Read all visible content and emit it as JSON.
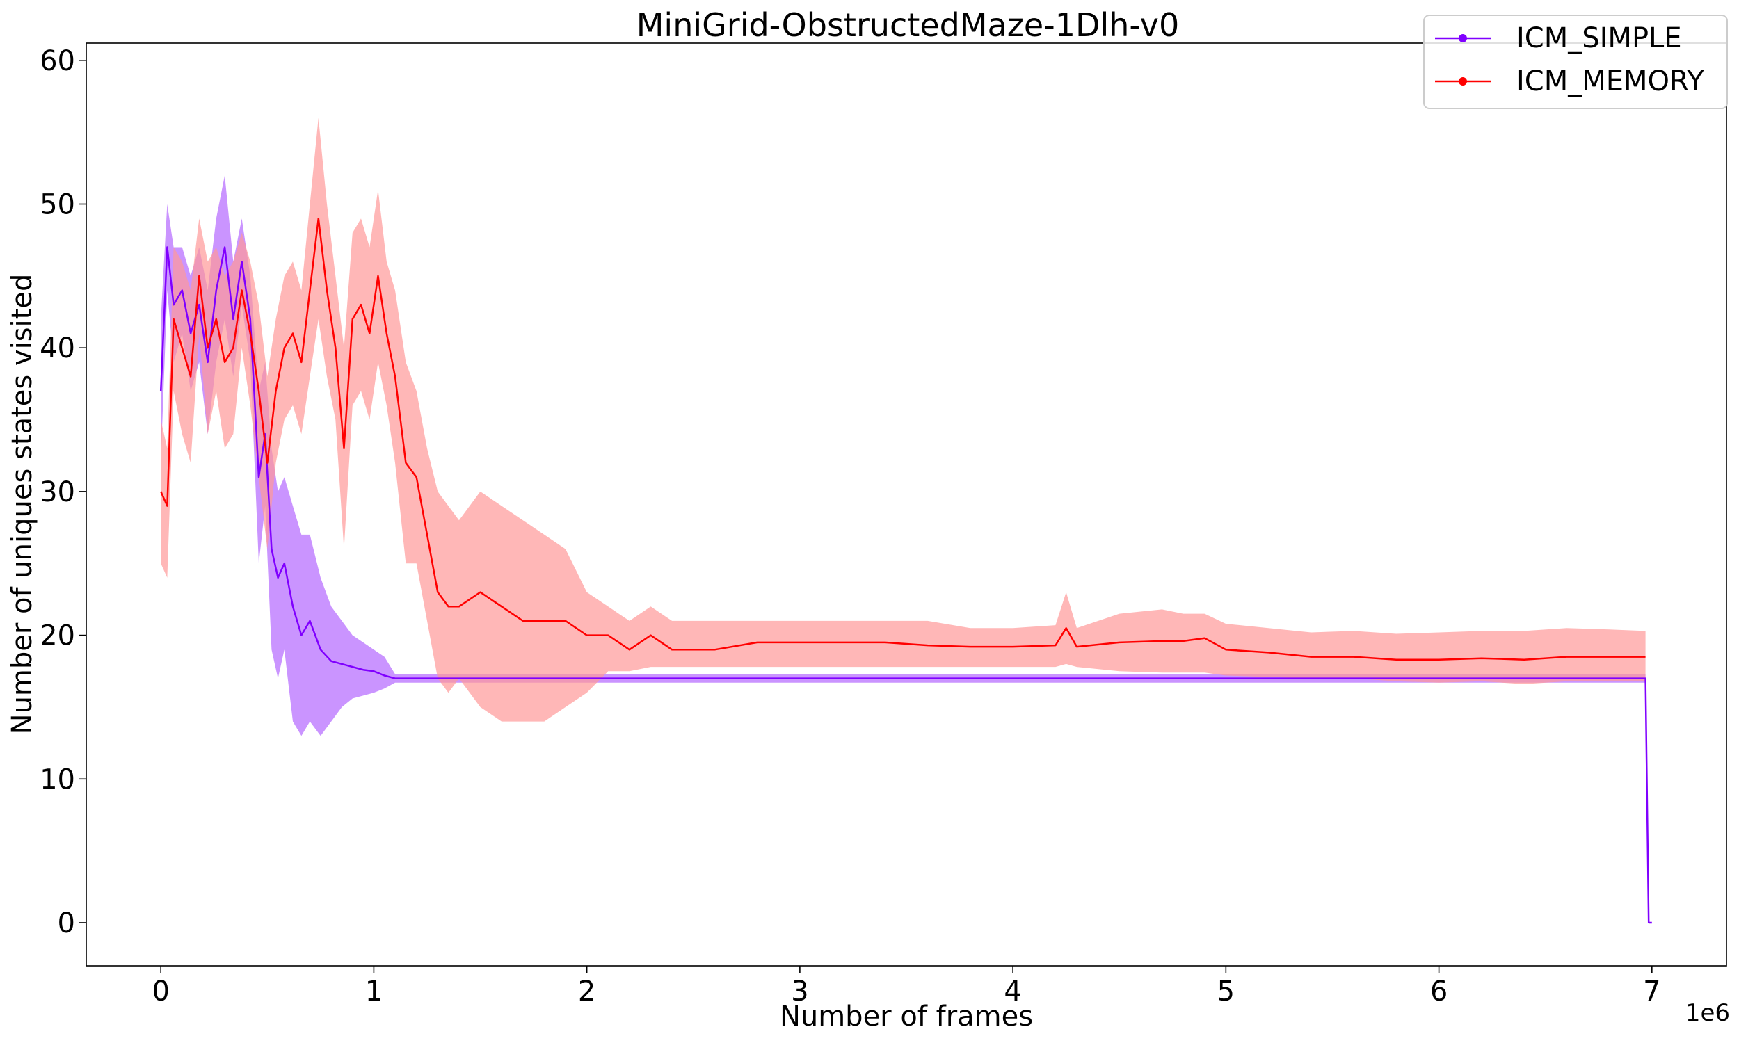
{
  "chart_data": {
    "type": "line",
    "title": "MiniGrid-ObstructedMaze-1Dlh-v0",
    "xlabel": "Number of frames",
    "ylabel": "Number of uniques states visited",
    "x_offset_text": "1e6",
    "xlim": [
      -0.35,
      7.35
    ],
    "ylim": [
      -3,
      61.2
    ],
    "x_scale_factor": 1000000,
    "x_ticks": [
      0,
      1,
      2,
      3,
      4,
      5,
      6,
      7
    ],
    "x_tick_labels": [
      "0",
      "1",
      "2",
      "3",
      "4",
      "5",
      "6",
      "7"
    ],
    "y_ticks": [
      0,
      10,
      20,
      30,
      40,
      50,
      60
    ],
    "y_tick_labels": [
      "0",
      "10",
      "20",
      "30",
      "40",
      "50",
      "60"
    ],
    "grid": false,
    "legend_position": "top-right",
    "series": [
      {
        "name": "ICM_SIMPLE",
        "color": "#8000ff",
        "band_color": "#b366ff",
        "x": [
          0,
          0.03,
          0.06,
          0.1,
          0.14,
          0.18,
          0.22,
          0.26,
          0.3,
          0.34,
          0.38,
          0.42,
          0.46,
          0.49,
          0.52,
          0.55,
          0.58,
          0.62,
          0.66,
          0.7,
          0.75,
          0.8,
          0.85,
          0.9,
          0.95,
          1.0,
          1.05,
          1.1,
          1.5,
          2.0,
          3.0,
          4.0,
          5.0,
          6.0,
          6.97,
          6.985,
          7.0
        ],
        "mean": [
          37,
          47,
          43,
          44,
          41,
          43,
          39,
          44,
          47,
          42,
          46,
          42,
          31,
          34,
          26,
          24,
          25,
          22,
          20,
          21,
          19,
          18.2,
          18,
          17.8,
          17.6,
          17.5,
          17.2,
          17,
          17,
          17,
          17,
          17,
          17,
          17,
          17,
          0,
          0
        ],
        "upper": [
          42,
          50,
          47,
          47,
          45,
          47,
          44,
          49,
          52,
          46,
          49,
          45,
          37,
          39,
          33,
          30,
          31,
          29,
          27,
          27,
          24,
          22,
          21,
          20,
          19.5,
          19,
          18.5,
          17.3,
          17.3,
          17.3,
          17.3,
          17.3,
          17.3,
          17.3,
          17.3,
          0,
          0
        ],
        "lower": [
          32,
          44,
          39,
          41,
          37,
          39,
          34,
          39,
          42,
          38,
          43,
          39,
          25,
          29,
          19,
          17,
          19,
          14,
          13,
          14,
          13,
          14,
          15,
          15.6,
          15.8,
          16,
          16.3,
          16.7,
          16.7,
          16.7,
          16.7,
          16.7,
          16.7,
          16.7,
          16.7,
          0,
          0
        ]
      },
      {
        "name": "ICM_MEMORY",
        "color": "#ff0000",
        "band_color": "#ff9999",
        "x": [
          0,
          0.03,
          0.06,
          0.1,
          0.14,
          0.18,
          0.22,
          0.26,
          0.3,
          0.34,
          0.38,
          0.42,
          0.46,
          0.5,
          0.54,
          0.58,
          0.62,
          0.66,
          0.7,
          0.74,
          0.78,
          0.82,
          0.86,
          0.9,
          0.94,
          0.98,
          1.02,
          1.06,
          1.1,
          1.15,
          1.2,
          1.25,
          1.3,
          1.35,
          1.4,
          1.5,
          1.6,
          1.7,
          1.8,
          1.9,
          2.0,
          2.1,
          2.2,
          2.3,
          2.4,
          2.6,
          2.8,
          3.0,
          3.2,
          3.4,
          3.6,
          3.8,
          4.0,
          4.2,
          4.25,
          4.3,
          4.5,
          4.7,
          4.8,
          4.9,
          5.0,
          5.2,
          5.4,
          5.6,
          5.8,
          6.0,
          6.2,
          6.4,
          6.6,
          6.8,
          6.97
        ],
        "mean": [
          30,
          29,
          42,
          40,
          38,
          45,
          40,
          42,
          39,
          40,
          44,
          41,
          37,
          32,
          37,
          40,
          41,
          39,
          44,
          49,
          44,
          40,
          33,
          42,
          43,
          41,
          45,
          41,
          38,
          32,
          31,
          27,
          23,
          22,
          22,
          23,
          22,
          21,
          21,
          21,
          20,
          20,
          19,
          20,
          19,
          19,
          19.5,
          19.5,
          19.5,
          19.5,
          19.3,
          19.2,
          19.2,
          19.3,
          20.5,
          19.2,
          19.5,
          19.6,
          19.6,
          19.8,
          19,
          18.8,
          18.5,
          18.5,
          18.3,
          18.3,
          18.4,
          18.3,
          18.5,
          18.5,
          18.5
        ],
        "upper": [
          35,
          33,
          47,
          46,
          44,
          49,
          46,
          47,
          45,
          46,
          48,
          46,
          43,
          38,
          42,
          45,
          46,
          44,
          50,
          56,
          50,
          45,
          40,
          48,
          49,
          47,
          51,
          46,
          44,
          39,
          37,
          33,
          30,
          29,
          28,
          30,
          29,
          28,
          27,
          26,
          23,
          22,
          21,
          22,
          21,
          21,
          21,
          21,
          21,
          21,
          21,
          20.5,
          20.5,
          20.7,
          23,
          20.5,
          21.5,
          21.8,
          21.5,
          21.5,
          20.8,
          20.5,
          20.2,
          20.3,
          20.1,
          20.2,
          20.3,
          20.3,
          20.5,
          20.4,
          20.3
        ],
        "lower": [
          25,
          24,
          37,
          34,
          32,
          41,
          34,
          37,
          33,
          34,
          40,
          36,
          31,
          26,
          32,
          35,
          36,
          34,
          38,
          42,
          38,
          35,
          26,
          36,
          37,
          35,
          39,
          36,
          32,
          25,
          25,
          21,
          17,
          16,
          17,
          15,
          14,
          14,
          14,
          15,
          16,
          17.5,
          17.5,
          17.8,
          17.8,
          17.8,
          17.8,
          17.8,
          17.8,
          17.8,
          17.8,
          17.8,
          17.8,
          17.8,
          18,
          17.8,
          17.5,
          17.4,
          17.4,
          17.4,
          17.2,
          17.1,
          17,
          17,
          16.8,
          16.7,
          16.8,
          16.6,
          16.8,
          16.8,
          16.8
        ]
      }
    ]
  }
}
